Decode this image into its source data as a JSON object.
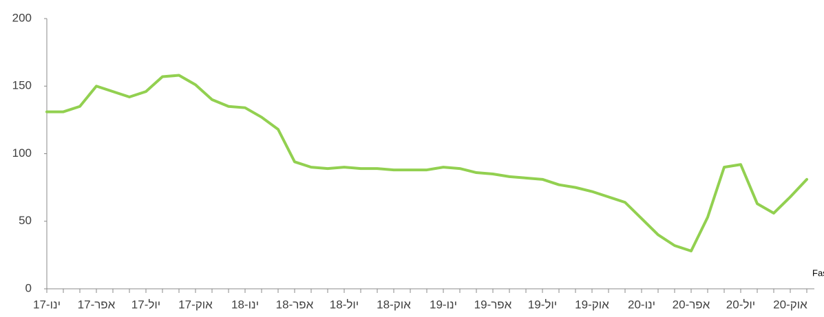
{
  "chart_data": {
    "type": "line",
    "categories": [
      "ינו-17",
      null,
      null,
      "אפר-17",
      null,
      null,
      "יול-17",
      null,
      null,
      "אוק-17",
      null,
      null,
      "ינו-18",
      null,
      null,
      "אפר-18",
      null,
      null,
      "יול-18",
      null,
      null,
      "אוק-18",
      null,
      null,
      "ינו-19",
      null,
      null,
      "אפר-19",
      null,
      null,
      "יול-19",
      null,
      null,
      "אוק-19",
      null,
      null,
      "ינו-20",
      null,
      null,
      "אפר-20",
      null,
      null,
      "יול-20",
      null,
      null,
      "אוק-20",
      null
    ],
    "values": [
      131,
      131,
      135,
      150,
      146,
      142,
      146,
      157,
      158,
      151,
      140,
      135,
      134,
      127,
      118,
      94,
      90,
      89,
      90,
      89,
      89,
      88,
      88,
      88,
      90,
      89,
      86,
      85,
      83,
      82,
      81,
      77,
      75,
      72,
      68,
      64,
      52,
      40,
      32,
      28,
      53,
      90,
      92,
      63,
      56,
      68,
      81
    ],
    "color": "#92d050",
    "ylim": [
      0,
      200
    ],
    "yticks": [
      0,
      50,
      100,
      150,
      200
    ],
    "grid": false,
    "annotation": "מקור- Fastmarkets RISI"
  }
}
